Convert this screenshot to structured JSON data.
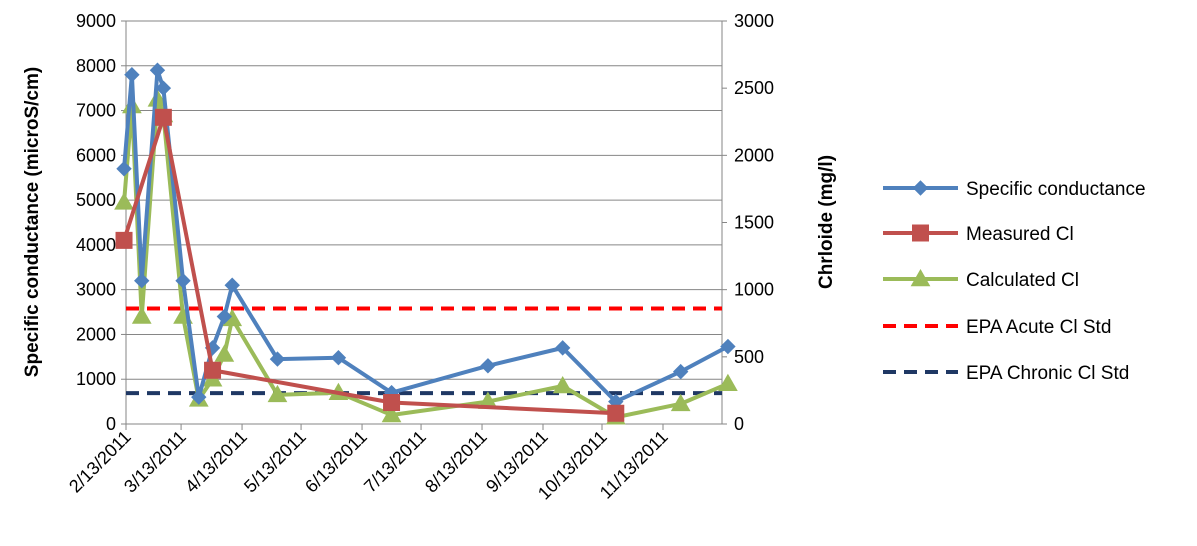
{
  "chart_data": {
    "type": "line",
    "x_ticks": [
      "2/13/2011",
      "3/13/2011",
      "4/13/2011",
      "5/13/2011",
      "6/13/2011",
      "7/13/2011",
      "8/13/2011",
      "9/13/2011",
      "10/13/2011",
      "11/13/2011"
    ],
    "y_left": {
      "label": "Specific conductance (microS/cm)",
      "ticks": [
        0,
        1000,
        2000,
        3000,
        4000,
        5000,
        6000,
        7000,
        8000,
        9000
      ],
      "range": [
        0,
        9000
      ]
    },
    "y_right": {
      "label": "Chrloide (mg/l)",
      "ticks": [
        0,
        500,
        1000,
        1500,
        2000,
        2500,
        3000
      ],
      "range": [
        0,
        3000
      ]
    },
    "x_range": [
      "2/13/2011",
      "12/13/2011"
    ],
    "grid": "horizontal",
    "legend_position": "right",
    "series": [
      {
        "name": "Specific conductance",
        "axis": "left",
        "color": "#4F81BD",
        "marker": "diamond",
        "points": [
          [
            "2/12/2011",
            5700
          ],
          [
            "2/16/2011",
            7800
          ],
          [
            "2/21/2011",
            3200
          ],
          [
            "3/1/2011",
            7900
          ],
          [
            "3/4/2011",
            7500
          ],
          [
            "3/14/2011",
            3200
          ],
          [
            "3/22/2011",
            600
          ],
          [
            "3/29/2011",
            1700
          ],
          [
            "4/4/2011",
            2400
          ],
          [
            "4/8/2011",
            3100
          ],
          [
            "5/1/2011",
            1450
          ],
          [
            "6/1/2011",
            1480
          ],
          [
            "6/28/2011",
            700
          ],
          [
            "8/16/2011",
            1300
          ],
          [
            "9/23/2011",
            1700
          ],
          [
            "10/20/2011",
            500
          ],
          [
            "11/22/2011",
            1170
          ],
          [
            "12/16/2011",
            1730
          ]
        ]
      },
      {
        "name": "Measured Cl",
        "axis": "right",
        "color": "#C0504D",
        "marker": "square",
        "points": [
          [
            "2/12/2011",
            1367
          ],
          [
            "3/4/2011",
            2283
          ],
          [
            "3/29/2011",
            400
          ],
          [
            "6/28/2011",
            160
          ],
          [
            "10/20/2011",
            80
          ]
        ]
      },
      {
        "name": "Calculated Cl",
        "axis": "right",
        "color": "#9BBB59",
        "marker": "triangle",
        "points": [
          [
            "2/12/2011",
            1650
          ],
          [
            "2/16/2011",
            2367
          ],
          [
            "2/21/2011",
            800
          ],
          [
            "3/1/2011",
            2417
          ],
          [
            "3/4/2011",
            2300
          ],
          [
            "3/14/2011",
            800
          ],
          [
            "3/22/2011",
            183
          ],
          [
            "3/29/2011",
            333
          ],
          [
            "4/4/2011",
            517
          ],
          [
            "4/8/2011",
            783
          ],
          [
            "5/1/2011",
            217
          ],
          [
            "6/1/2011",
            233
          ],
          [
            "6/28/2011",
            67
          ],
          [
            "8/16/2011",
            167
          ],
          [
            "9/23/2011",
            283
          ],
          [
            "10/20/2011",
            50
          ],
          [
            "11/22/2011",
            150
          ],
          [
            "12/16/2011",
            300
          ]
        ]
      },
      {
        "name": "EPA Acute Cl Std",
        "axis": "right",
        "color": "#FF0000",
        "style": "dashed",
        "constant": 860
      },
      {
        "name": "EPA Chronic Cl Std",
        "axis": "right",
        "color": "#1F3864",
        "style": "dashed",
        "constant": 230
      }
    ]
  }
}
